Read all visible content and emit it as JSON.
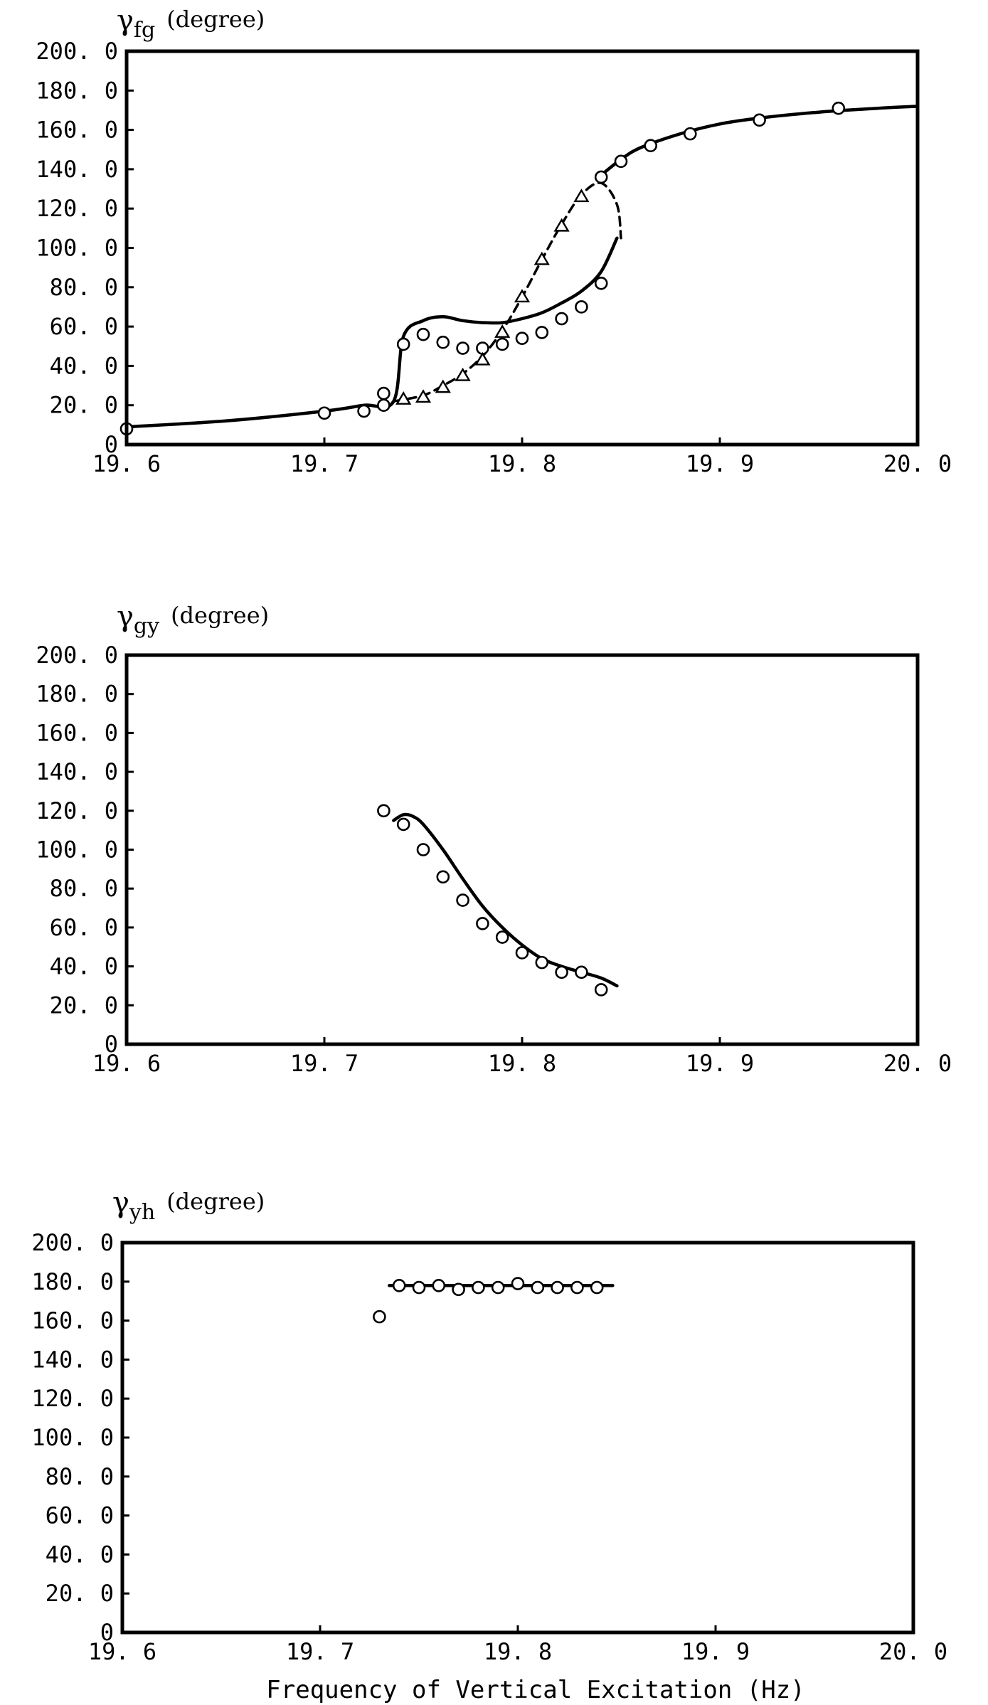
{
  "chart_data": [
    {
      "type": "line",
      "ylabel_symbol": "γ",
      "ylabel_sub": "fg",
      "ylabel_unit": "(degree)",
      "xlabel": "",
      "xlim": [
        19.6,
        20.0
      ],
      "ylim": [
        0,
        200
      ],
      "x_ticks": [
        "19. 6",
        "19. 7",
        "19. 8",
        "19. 9",
        "20. 0"
      ],
      "y_ticks": [
        "0",
        "20. 0",
        "40. 0",
        "60. 0",
        "80. 0",
        "100. 0",
        "120. 0",
        "140. 0",
        "160. 0",
        "180. 0",
        "200. 0"
      ],
      "series": [
        {
          "style": "solid-curve",
          "x": [
            19.6,
            19.65,
            19.7,
            19.72,
            19.735,
            19.74,
            19.75,
            19.76,
            19.77,
            19.78,
            19.79,
            19.8,
            19.81,
            19.82,
            19.83,
            19.84,
            19.848
          ],
          "y": [
            9,
            12,
            17,
            20,
            22,
            55,
            63,
            65,
            63,
            62,
            62,
            64,
            67,
            72,
            78,
            88,
            105
          ]
        },
        {
          "style": "solid-curve",
          "x": [
            19.84,
            19.85,
            19.86,
            19.88,
            19.9,
            19.92,
            19.95,
            19.98,
            20.0
          ],
          "y": [
            137,
            145,
            151,
            158,
            163,
            166,
            169,
            171,
            172
          ]
        },
        {
          "style": "dashed-curve",
          "x": [
            19.735,
            19.75,
            19.76,
            19.77,
            19.78,
            19.79,
            19.8,
            19.81,
            19.82,
            19.83,
            19.84,
            19.848,
            19.85
          ],
          "y": [
            22,
            25,
            30,
            36,
            45,
            58,
            75,
            94,
            112,
            127,
            133,
            122,
            105
          ]
        },
        {
          "style": "circle-markers",
          "x": [
            19.6,
            19.7,
            19.72,
            19.73,
            19.73,
            19.74,
            19.75,
            19.76,
            19.77,
            19.78,
            19.79,
            19.8,
            19.81,
            19.82,
            19.83,
            19.84,
            19.84,
            19.85,
            19.865,
            19.885,
            19.92,
            19.96
          ],
          "y": [
            8,
            16,
            17,
            20,
            26,
            51,
            56,
            52,
            49,
            49,
            51,
            54,
            57,
            64,
            70,
            82,
            136,
            144,
            152,
            158,
            165,
            171
          ]
        },
        {
          "style": "triangle-markers",
          "x": [
            19.74,
            19.75,
            19.76,
            19.77,
            19.78,
            19.79,
            19.8,
            19.81,
            19.82,
            19.83
          ],
          "y": [
            23,
            24,
            29,
            35,
            43,
            57,
            75,
            94,
            111,
            126
          ]
        }
      ]
    },
    {
      "type": "line",
      "ylabel_symbol": "γ",
      "ylabel_sub": "gy",
      "ylabel_unit": "(degree)",
      "xlabel": "",
      "xlim": [
        19.6,
        20.0
      ],
      "ylim": [
        0,
        200
      ],
      "x_ticks": [
        "19. 6",
        "19. 7",
        "19. 8",
        "19. 9",
        "20. 0"
      ],
      "y_ticks": [
        "0",
        "20. 0",
        "40. 0",
        "60. 0",
        "80. 0",
        "100. 0",
        "120. 0",
        "140. 0",
        "160. 0",
        "180. 0",
        "200. 0"
      ],
      "series": [
        {
          "style": "solid-curve",
          "x": [
            19.735,
            19.74,
            19.745,
            19.75,
            19.76,
            19.77,
            19.78,
            19.79,
            19.8,
            19.81,
            19.82,
            19.83,
            19.84,
            19.848
          ],
          "y": [
            115,
            118,
            117,
            113,
            100,
            85,
            71,
            60,
            51,
            44,
            40,
            37,
            34,
            30
          ]
        },
        {
          "style": "circle-markers",
          "x": [
            19.73,
            19.74,
            19.75,
            19.76,
            19.77,
            19.78,
            19.79,
            19.8,
            19.81,
            19.82,
            19.83,
            19.84
          ],
          "y": [
            120,
            113,
            100,
            86,
            74,
            62,
            55,
            47,
            42,
            37,
            37,
            28
          ]
        }
      ]
    },
    {
      "type": "line",
      "ylabel_symbol": "γ",
      "ylabel_sub": "yh",
      "ylabel_unit": "(degree)",
      "xlabel": "Frequency of Vertical Excitation (Hz)",
      "xlim": [
        19.6,
        20.0
      ],
      "ylim": [
        0,
        200
      ],
      "x_ticks": [
        "19. 6",
        "19. 7",
        "19. 8",
        "19. 9",
        "20. 0"
      ],
      "y_ticks": [
        "0",
        "20. 0",
        "40. 0",
        "60. 0",
        "80. 0",
        "100. 0",
        "120. 0",
        "140. 0",
        "160. 0",
        "180. 0",
        "200. 0"
      ],
      "series": [
        {
          "style": "solid-curve",
          "x": [
            19.735,
            19.848
          ],
          "y": [
            178,
            178
          ]
        },
        {
          "style": "circle-markers",
          "x": [
            19.73,
            19.74,
            19.75,
            19.76,
            19.77,
            19.78,
            19.79,
            19.8,
            19.81,
            19.82,
            19.83,
            19.84
          ],
          "y": [
            162,
            178,
            177,
            178,
            176,
            177,
            177,
            179,
            177,
            177,
            177,
            177
          ]
        }
      ]
    }
  ]
}
